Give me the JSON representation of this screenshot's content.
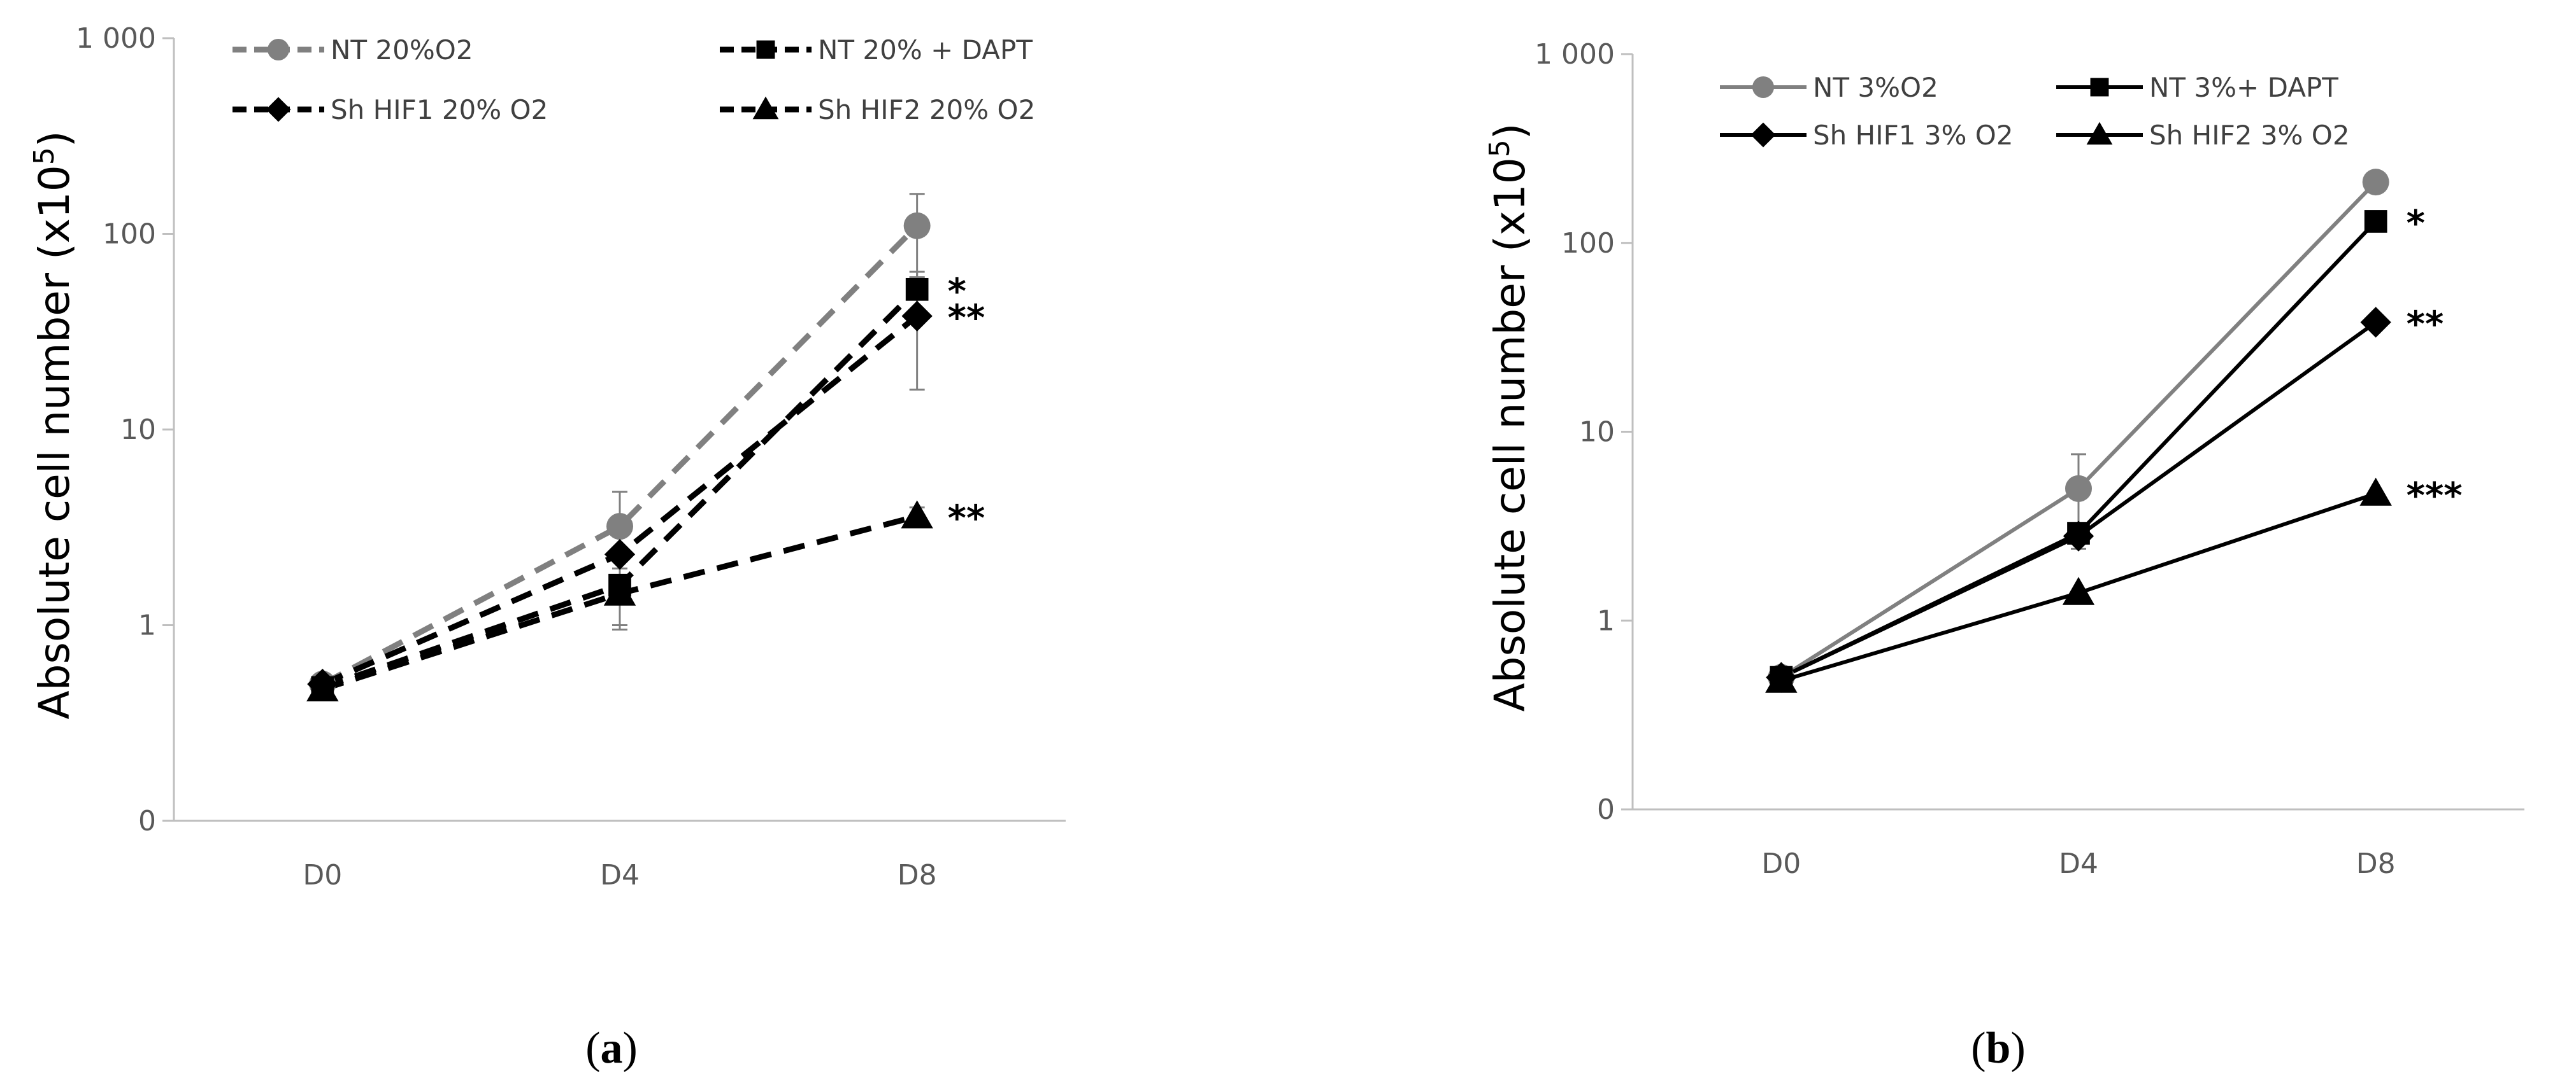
{
  "chart_data": [
    {
      "panel": "a",
      "type": "line",
      "scale": "log",
      "categories": [
        "D0",
        "D4",
        "D8"
      ],
      "ylabel": "Absolute cell number",
      "ylabel_unit_base": "(x10",
      "ylabel_unit_exp": "5",
      "ylabel_unit_close": ")",
      "yticks": [
        {
          "value": 0.1,
          "label": "0"
        },
        {
          "value": 1,
          "label": "1"
        },
        {
          "value": 10,
          "label": "10"
        },
        {
          "value": 100,
          "label": "100"
        },
        {
          "value": 1000,
          "label": "1 000"
        }
      ],
      "ylim": [
        0.1,
        1000
      ],
      "caption_letter": "a",
      "series": [
        {
          "name": "NT 20%O2",
          "marker": "circle",
          "color": "#808080",
          "dash": true,
          "values": [
            0.5,
            3.2,
            110
          ],
          "err": [
            0,
            1.6,
            50
          ],
          "sig": ""
        },
        {
          "name": "NT 20% + DAPT",
          "marker": "square",
          "color": "#000000",
          "dash": true,
          "values": [
            0.48,
            1.6,
            52
          ],
          "err": [
            0,
            0.6,
            12
          ],
          "sig": "*"
        },
        {
          "name": "Sh HIF1 20% O2",
          "marker": "diamond",
          "color": "#000000",
          "dash": true,
          "values": [
            0.5,
            2.3,
            38
          ],
          "err": [
            0,
            0.7,
            22
          ],
          "sig": "**"
        },
        {
          "name": "Sh HIF2 20% O2",
          "marker": "triangle",
          "color": "#000000",
          "dash": true,
          "values": [
            0.47,
            1.45,
            3.6
          ],
          "err": [
            0,
            0.5,
            0.4
          ],
          "sig": "**"
        }
      ]
    },
    {
      "panel": "b",
      "type": "line",
      "scale": "log",
      "categories": [
        "D0",
        "D4",
        "D8"
      ],
      "ylabel": "Absolute cell number",
      "ylabel_unit_base": "(x10",
      "ylabel_unit_exp": "5",
      "ylabel_unit_close": ")",
      "yticks": [
        {
          "value": 0.1,
          "label": "0"
        },
        {
          "value": 1,
          "label": "1"
        },
        {
          "value": 10,
          "label": "10"
        },
        {
          "value": 100,
          "label": "100"
        },
        {
          "value": 1000,
          "label": "1 000"
        }
      ],
      "ylim": [
        0.1,
        1000
      ],
      "caption_letter": "b",
      "series": [
        {
          "name": "NT 3%O2",
          "marker": "circle",
          "color": "#808080",
          "dash": false,
          "values": [
            0.5,
            5,
            210
          ],
          "err": [
            0,
            2.6,
            0
          ],
          "sig": ""
        },
        {
          "name": "NT 3%+ DAPT",
          "marker": "square",
          "color": "#000000",
          "dash": false,
          "values": [
            0.5,
            2.9,
            130
          ],
          "err": [
            0,
            0,
            0
          ],
          "sig": "*"
        },
        {
          "name": "Sh HIF1 3% O2",
          "marker": "diamond",
          "color": "#000000",
          "dash": false,
          "values": [
            0.5,
            2.8,
            38
          ],
          "err": [
            0,
            0,
            0
          ],
          "sig": "**"
        },
        {
          "name": "Sh HIF2 3% O2",
          "marker": "triangle",
          "color": "#000000",
          "dash": false,
          "values": [
            0.48,
            1.4,
            4.7
          ],
          "err": [
            0,
            0,
            0
          ],
          "sig": "***"
        }
      ]
    }
  ]
}
